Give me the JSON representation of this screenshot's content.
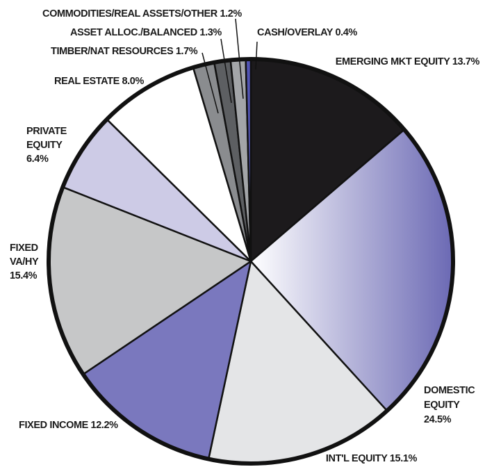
{
  "chart_data": {
    "type": "pie",
    "start_angle_deg": 0,
    "direction": "clockwise",
    "slices": [
      {
        "label": "EMERGING MKT EQUITY 13.7%",
        "value": 13.7,
        "color": "#1c1a1c"
      },
      {
        "label_lines": [
          "DOMESTIC",
          "EQUITY",
          "24.5%"
        ],
        "value": 24.5,
        "color": "gradient"
      },
      {
        "label": "INT'L EQUITY 15.1%",
        "value": 15.1,
        "color": "#e4e5e7"
      },
      {
        "label": "FIXED INCOME 12.2%",
        "value": 12.2,
        "color": "#7a78be"
      },
      {
        "label_lines": [
          "FIXED",
          "VA/HY",
          "15.4%"
        ],
        "value": 15.4,
        "color": "#c6c7c8"
      },
      {
        "label_lines": [
          "PRIVATE",
          "EQUITY",
          "6.4%"
        ],
        "value": 6.4,
        "color": "#cdcbe6"
      },
      {
        "label": "REAL ESTATE 8.0%",
        "value": 8.0,
        "color": "#ffffff"
      },
      {
        "label": "TIMBER/NAT RESOURCES 1.7%",
        "value": 1.7,
        "color": "#8a8c8f"
      },
      {
        "label": "ASSET ALLOC./BALANCED 1.3%",
        "value": 1.3,
        "color": "#5d5f62"
      },
      {
        "label": "COMMODITIES/REAL ASSETS/OTHER  1.2%",
        "value": 1.2,
        "color": "#a3a5a8"
      },
      {
        "label": "CASH/OVERLAY 0.4%",
        "value": 0.4,
        "color": "#5255b4"
      }
    ],
    "gradient": {
      "from": "#ffffff",
      "to": "#6b69b4"
    },
    "legend": "none"
  }
}
